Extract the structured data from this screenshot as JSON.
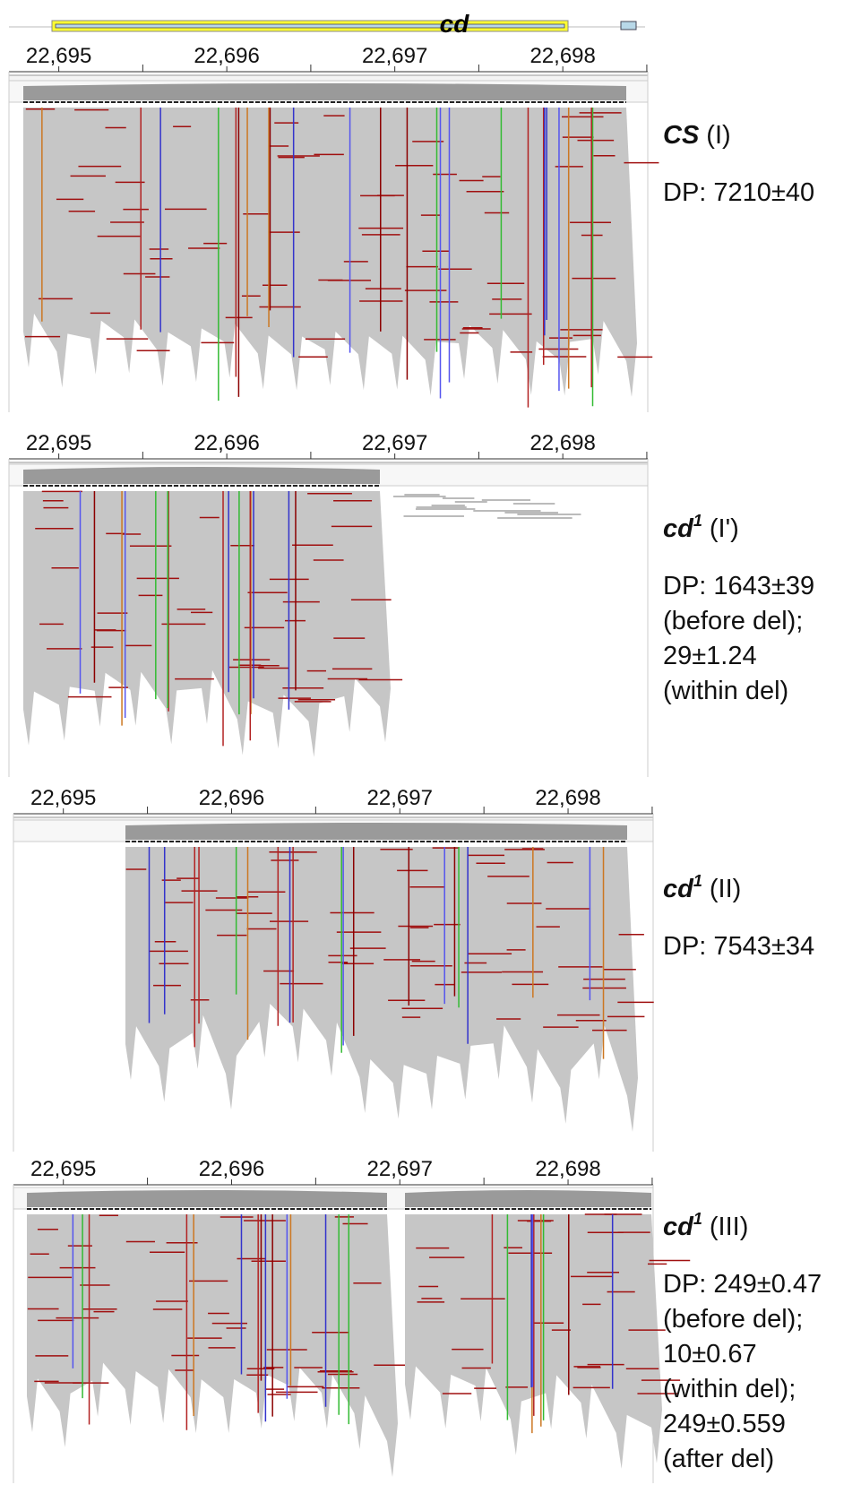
{
  "gene": {
    "label": "cd"
  },
  "panels": [
    {
      "ruler": {
        "ticks": [
          "22,695",
          "22,696",
          "22,697",
          "22,698"
        ]
      },
      "sample": {
        "name": "CS",
        "tag": "(I)"
      },
      "depth": [
        "DP: 7210±40"
      ]
    },
    {
      "ruler": {
        "ticks": [
          "22,695",
          "22,696",
          "22,697",
          "22,698"
        ]
      },
      "sample": {
        "name": "cd",
        "superscript": "1",
        "tag": "(I')"
      },
      "depth": [
        "DP: 1643±39",
        "(before del);",
        "29±1.24",
        "(within del)"
      ]
    },
    {
      "ruler": {
        "ticks": [
          "22,695",
          "22,696",
          "22,697",
          "22,698"
        ]
      },
      "sample": {
        "name": "cd",
        "superscript": "1",
        "tag": "(II)"
      },
      "depth": [
        "DP: 7543±34"
      ]
    },
    {
      "ruler": {
        "ticks": [
          "22,695",
          "22,696",
          "22,697",
          "22,698"
        ]
      },
      "sample": {
        "name": "cd",
        "superscript": "1",
        "tag": "(III)"
      },
      "depth": [
        "DP: 249±0.47",
        "(before del);",
        "10±0.67",
        "(within del);",
        "249±0.559",
        "(after del)"
      ]
    }
  ]
}
